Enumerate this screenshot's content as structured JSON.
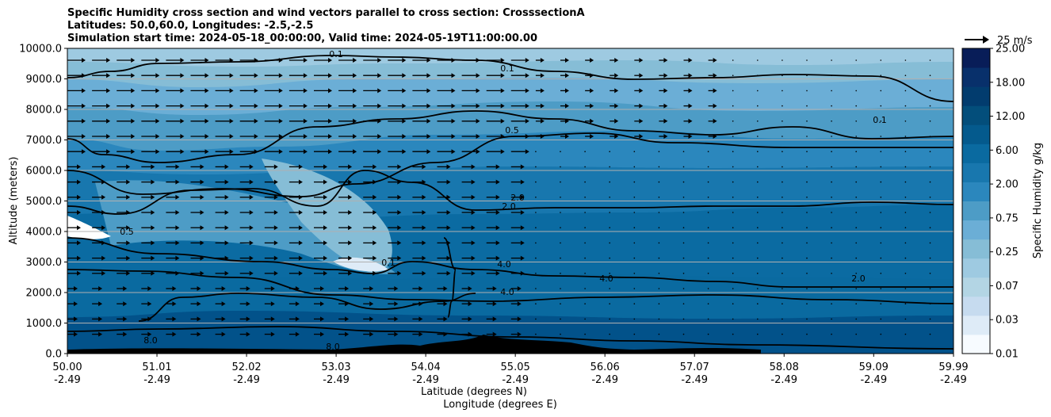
{
  "chart_data": {
    "type": "heatmap",
    "title_lines": [
      "Specific Humidity cross section and wind vectors parallel to cross section: CrosssectionA",
      "Latitudes: 50.0,60.0, Longitudes: -2.5,-2.5",
      "Simulation start time: 2024-05-18_00:00:00, Valid time: 2024-05-19T11:00:00.00"
    ],
    "xlabel_line1": "Latitude (degrees N)",
    "xlabel_line2": "Longitude (degrees E)",
    "ylabel": "Altitude (meters)",
    "x_ticks_lat": [
      "50.00",
      "51.01",
      "52.02",
      "53.03",
      "54.04",
      "55.05",
      "56.06",
      "57.07",
      "58.08",
      "59.09",
      "59.99"
    ],
    "x_ticks_lon": [
      "-2.49",
      "-2.49",
      "-2.49",
      "-2.49",
      "-2.49",
      "-2.49",
      "-2.49",
      "-2.49",
      "-2.49",
      "-2.49",
      "-2.49"
    ],
    "y_ticks": [
      "0.0",
      "1000.0",
      "2000.0",
      "3000.0",
      "4000.0",
      "5000.0",
      "6000.0",
      "7000.0",
      "8000.0",
      "9000.0",
      "10000.0"
    ],
    "ylim": [
      0,
      10000
    ],
    "grid": "horizontal",
    "colorbar": {
      "label": "Specific Humidity g/kg",
      "tick_labels": [
        "0.01",
        "0.03",
        "0.07",
        "0.25",
        "0.75",
        "2.00",
        "6.00",
        "12.00",
        "18.00",
        "25.00"
      ],
      "colors": [
        "#f7fbff",
        "#deebf7",
        "#c6dbef",
        "#b3d5e4",
        "#9ecae1",
        "#86bdd6",
        "#6baed6",
        "#4d9cc6",
        "#2b87bd",
        "#1877ae",
        "#0a6aa0",
        "#045a8d",
        "#034e7b",
        "#023c6e",
        "#08306b",
        "#081d58"
      ]
    },
    "contour_levels": [
      "0.1",
      "0.2",
      "0.5",
      "2.0",
      "4.0",
      "8.0"
    ],
    "wind_key": {
      "label": "25 m/s",
      "speed": 25
    }
  }
}
